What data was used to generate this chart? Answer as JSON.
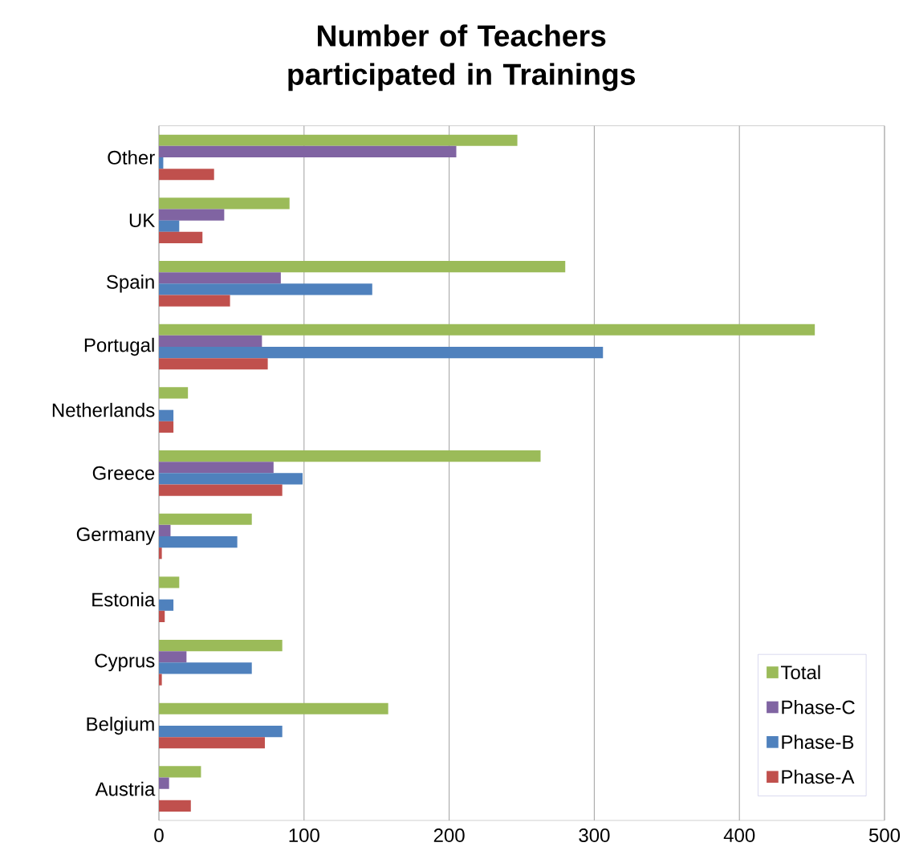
{
  "chart_data": {
    "type": "bar",
    "orientation": "horizontal",
    "title": "Number of Teachers participated in Trainings",
    "categories": [
      "Other",
      "UK",
      "Spain",
      "Portugal",
      "Netherlands",
      "Greece",
      "Germany",
      "Estonia",
      "Cyprus",
      "Belgium",
      "Austria"
    ],
    "series": [
      {
        "name": "Total",
        "color": "#9bbb59",
        "values": [
          247,
          90,
          280,
          452,
          20,
          263,
          64,
          14,
          85,
          158,
          29
        ]
      },
      {
        "name": "Phase-C",
        "color": "#8064a2",
        "values": [
          205,
          45,
          84,
          71,
          0,
          79,
          8,
          0,
          19,
          0,
          7
        ]
      },
      {
        "name": "Phase-B",
        "color": "#4f81bd",
        "values": [
          3,
          14,
          147,
          306,
          10,
          99,
          54,
          10,
          64,
          85,
          0
        ]
      },
      {
        "name": "Phase-A",
        "color": "#c0504d",
        "values": [
          38,
          30,
          49,
          75,
          10,
          85,
          2,
          4,
          2,
          73,
          22
        ]
      }
    ],
    "xlim": [
      0,
      500
    ],
    "xticks": [
      0,
      100,
      200,
      300,
      400,
      500
    ],
    "grid": "x",
    "legend": "bottom right"
  }
}
